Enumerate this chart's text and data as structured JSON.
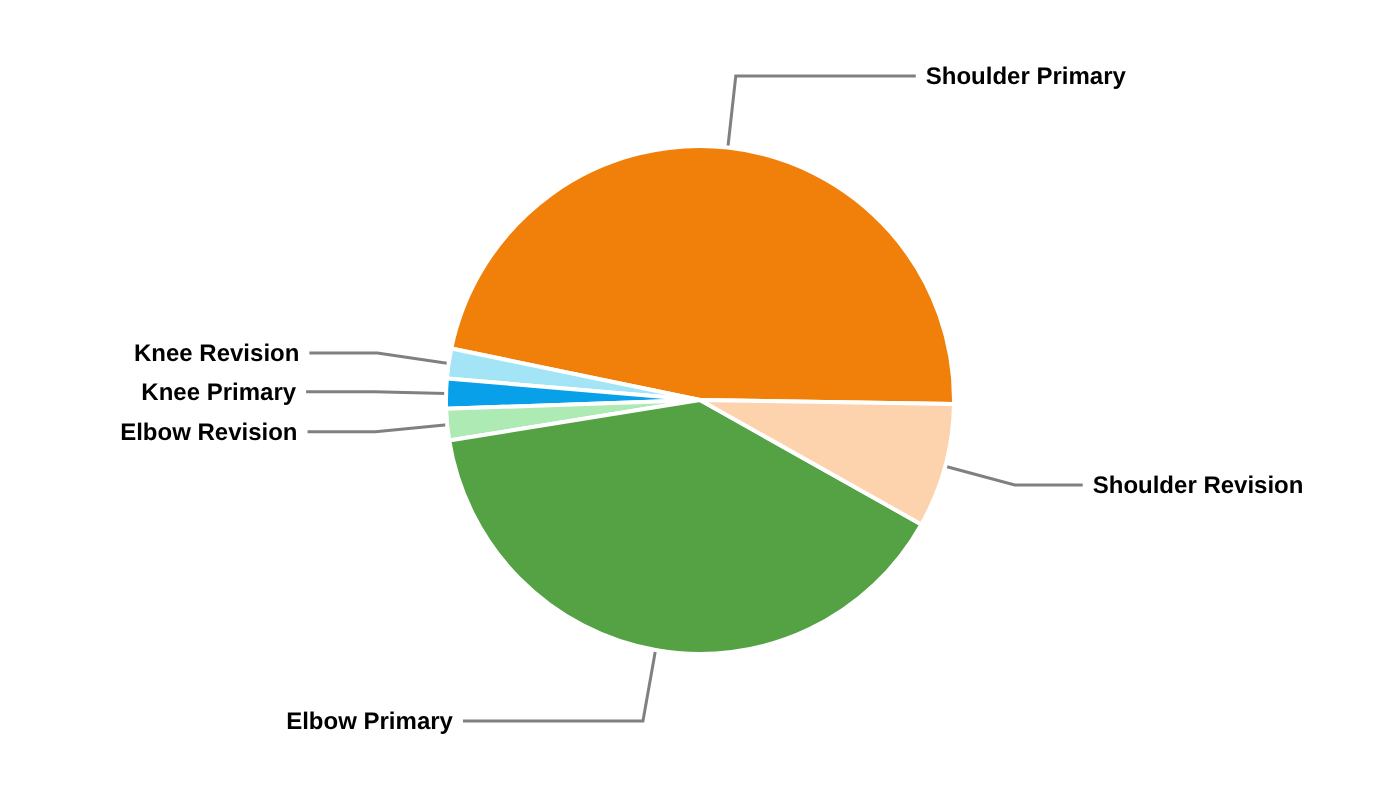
{
  "chart_data": {
    "type": "pie",
    "categories": [
      "Shoulder Primary",
      "Knee Revision",
      "Knee Primary",
      "Elbow Revision",
      "Elbow Primary",
      "Shoulder Revision"
    ],
    "values": [
      47,
      1.9,
      1.9,
      2.0,
      39.3,
      7.9
    ],
    "colors": [
      "#f0800a",
      "#a3e4f7",
      "#08a0e8",
      "#aeeab4",
      "#54a244",
      "#fdd3ad"
    ]
  }
}
